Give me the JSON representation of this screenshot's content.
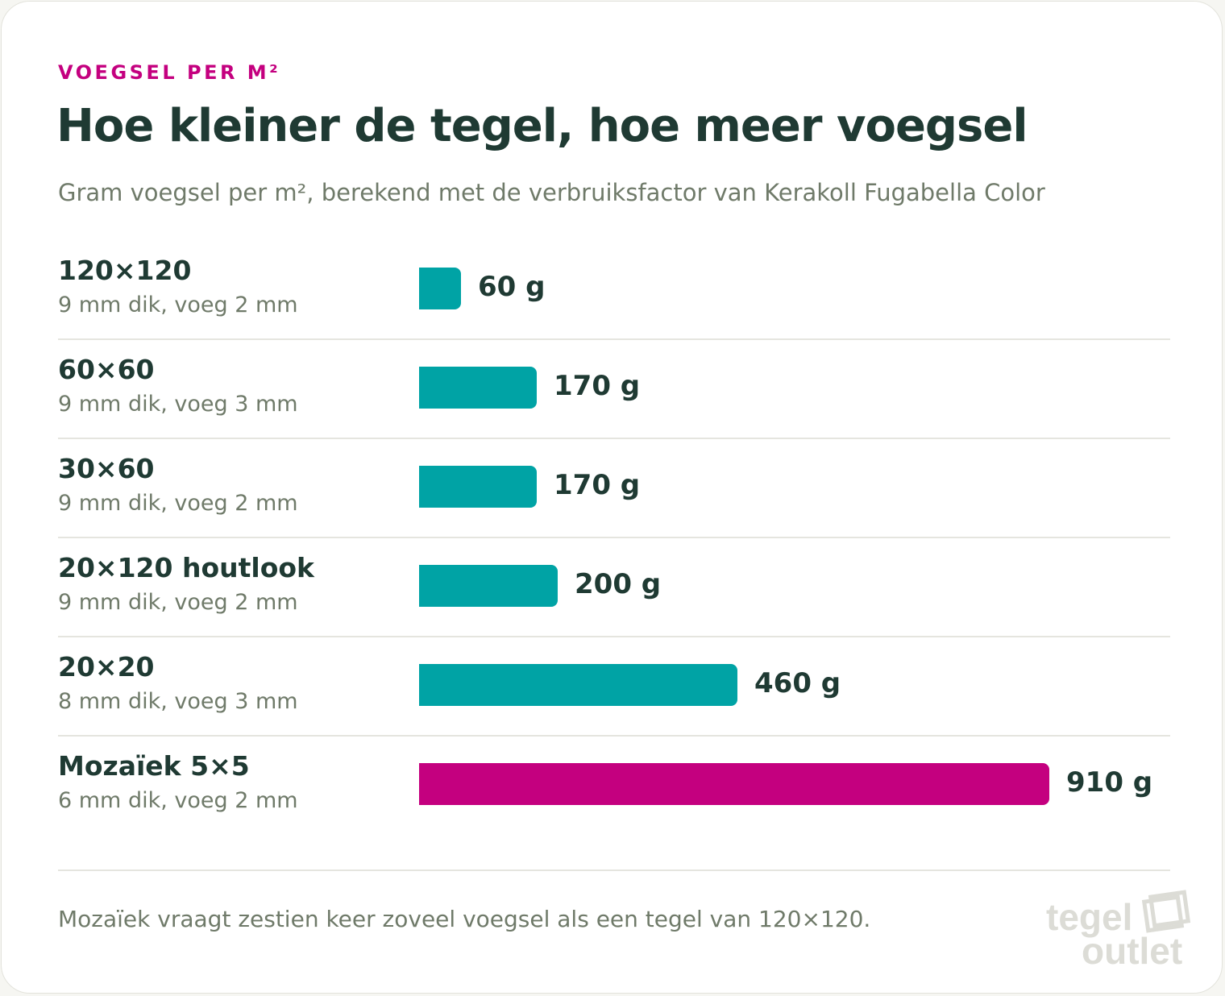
{
  "header": {
    "eyebrow": "VOEGSEL PER M²",
    "title": "Hoe kleiner de tegel, hoe meer voegsel",
    "subtitle": "Gram voegsel per m², berekend met de verbruiksfactor van Kerakoll Fugabella Color"
  },
  "chart_data": {
    "type": "bar",
    "orientation": "horizontal",
    "categories": [
      "120×120",
      "60×60",
      "30×60",
      "20×120 houtlook",
      "20×20",
      "Mozaïek 5×5"
    ],
    "descriptions": [
      "9 mm dik, voeg 2 mm",
      "9 mm dik, voeg 3 mm",
      "9 mm dik, voeg 2 mm",
      "9 mm dik, voeg 2 mm",
      "8 mm dik, voeg 3 mm",
      "6 mm dik, voeg 2 mm"
    ],
    "values": [
      60,
      170,
      170,
      200,
      460,
      910
    ],
    "value_labels": [
      "60 g",
      "170 g",
      "170 g",
      "200 g",
      "460 g",
      "910 g"
    ],
    "unit": "g",
    "xlim": [
      0,
      910
    ],
    "highlight_index": 5,
    "colors": {
      "default": "#00a3a5",
      "highlight": "#c4007f"
    },
    "grid": false,
    "legend": "none"
  },
  "footer": {
    "note": "Mozaïek vraagt zestien keer zoveel voegsel als een tegel van 120×120."
  },
  "logo": {
    "line1": "tegel",
    "line2": "outlet"
  }
}
